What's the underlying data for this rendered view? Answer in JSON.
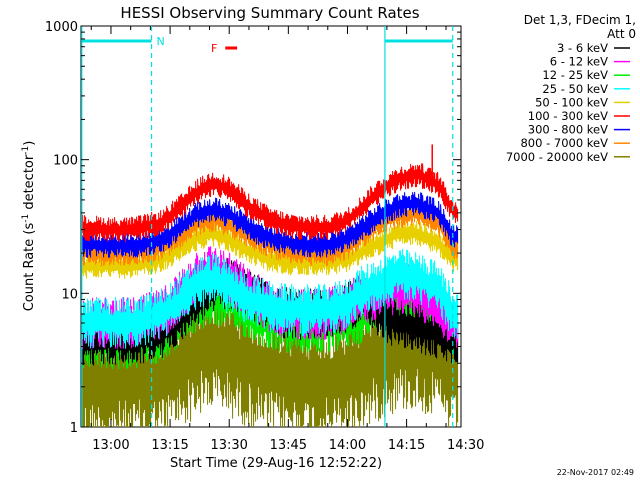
{
  "chart_data": {
    "type": "line",
    "title": "HESSI Observing Summary Count Rates",
    "xlabel": "Start Time (29-Aug-16 12:52:22)",
    "ylabel_main": "Count Rate (s",
    "ylabel_sup1": "-1",
    "ylabel_mid": " detector",
    "ylabel_sup2": "-1",
    "ylabel_end": ")",
    "yscale": "log",
    "ylim": [
      1,
      1000
    ],
    "xlim_minutes": [
      -7.6,
      88.8
    ],
    "x_ticks": [
      {
        "label": "13:00",
        "minutes": 0
      },
      {
        "label": "13:15",
        "minutes": 15
      },
      {
        "label": "13:30",
        "minutes": 30
      },
      {
        "label": "13:45",
        "minutes": 45
      },
      {
        "label": "14:00",
        "minutes": 60
      },
      {
        "label": "14:15",
        "minutes": 75
      },
      {
        "label": "14:30",
        "minutes": 90
      }
    ],
    "y_ticks": [
      {
        "label": "1",
        "value": 1
      },
      {
        "label": "10",
        "value": 10
      },
      {
        "label": "100",
        "value": 100
      },
      {
        "label": "1000",
        "value": 1000
      }
    ],
    "legend_header": [
      "Det 1,3, FDecim 1,",
      "Att 0"
    ],
    "legend_position": "right",
    "series": [
      {
        "name": "3 - 6 keV",
        "color": "#000000",
        "x": [
          -7,
          0,
          6,
          13,
          18,
          22,
          26,
          30,
          35,
          40,
          45,
          50,
          55,
          60,
          63,
          68,
          73,
          78,
          83,
          87
        ],
        "y": [
          4.5,
          4.5,
          4.5,
          5,
          7,
          9,
          11,
          12,
          10,
          8,
          7,
          7,
          7,
          8,
          9,
          7,
          6,
          5.5,
          5,
          4.5
        ]
      },
      {
        "name": "6 - 12 keV",
        "color": "#ff00ff",
        "x": [
          -7,
          0,
          6,
          13,
          18,
          22,
          26,
          30,
          35,
          40,
          45,
          50,
          55,
          60,
          63,
          68,
          73,
          78,
          83,
          87
        ],
        "y": [
          6,
          6,
          6,
          7,
          10,
          14,
          15,
          13,
          10,
          8,
          7,
          7,
          7,
          8,
          9,
          10,
          11,
          10,
          8,
          6
        ]
      },
      {
        "name": "12 - 25 keV",
        "color": "#00ee00",
        "x": [
          -7,
          0,
          6,
          13,
          18,
          22,
          26,
          30,
          35,
          40,
          45,
          50,
          55,
          60,
          63,
          68,
          73,
          78,
          83,
          87
        ],
        "y": [
          4.2,
          4.2,
          4.2,
          4.8,
          6.5,
          8,
          9,
          8.5,
          7,
          6,
          5.5,
          5.5,
          5.5,
          6,
          6.5,
          8,
          9.5,
          9,
          7.5,
          5
        ]
      },
      {
        "name": "25 - 50 keV",
        "color": "#00ffff",
        "x": [
          -7,
          0,
          6,
          13,
          18,
          22,
          26,
          30,
          35,
          40,
          45,
          50,
          55,
          60,
          63,
          68,
          73,
          78,
          83,
          87
        ],
        "y": [
          6,
          6,
          6,
          7,
          9,
          12,
          13,
          11,
          9,
          8,
          7.5,
          7.5,
          7.5,
          8.5,
          10,
          12,
          14,
          13,
          11,
          7
        ]
      },
      {
        "name": "50 - 100 keV",
        "color": "#e8d000",
        "x": [
          -7,
          0,
          6,
          13,
          18,
          22,
          26,
          30,
          35,
          40,
          45,
          50,
          55,
          60,
          63,
          68,
          73,
          78,
          83,
          87
        ],
        "y": [
          16,
          16,
          16,
          18,
          22,
          26,
          28,
          25,
          21,
          18,
          17,
          17,
          17,
          18,
          20,
          24,
          28,
          28,
          24,
          18
        ]
      },
      {
        "name": "100 - 300 keV",
        "color": "#ff0000",
        "x": [
          -7,
          0,
          6,
          13,
          18,
          22,
          26,
          30,
          35,
          40,
          45,
          50,
          55,
          60,
          63,
          68,
          73,
          78,
          83,
          87
        ],
        "y": [
          31,
          30,
          30,
          34,
          45,
          58,
          67,
          60,
          45,
          36,
          32,
          31,
          31,
          35,
          42,
          58,
          72,
          78,
          65,
          40
        ]
      },
      {
        "name": "300 - 800 keV",
        "color": "#0000ff",
        "x": [
          -7,
          0,
          6,
          13,
          18,
          22,
          26,
          30,
          35,
          40,
          45,
          50,
          55,
          60,
          63,
          68,
          73,
          78,
          83,
          87
        ],
        "y": [
          23,
          23,
          23,
          25,
          32,
          39,
          42,
          39,
          31,
          26,
          24,
          23,
          23,
          26,
          30,
          38,
          46,
          47,
          40,
          26
        ]
      },
      {
        "name": "800 - 7000 keV",
        "color": "#ff8800",
        "x": [
          -7,
          0,
          6,
          13,
          18,
          22,
          26,
          30,
          35,
          40,
          45,
          50,
          55,
          60,
          63,
          68,
          73,
          78,
          83,
          87
        ],
        "y": [
          20,
          20,
          20,
          22,
          27,
          33,
          36,
          33,
          27,
          23,
          21,
          20,
          20,
          22,
          26,
          33,
          38,
          40,
          34,
          22
        ]
      },
      {
        "name": "7000 - 20000 keV",
        "color": "#808000",
        "x": [
          -7,
          0,
          6,
          13,
          18,
          22,
          26,
          30,
          35,
          40,
          45,
          50,
          55,
          60,
          63,
          68,
          73,
          78,
          83,
          87
        ],
        "y": [
          2.2,
          2.2,
          2.2,
          2.4,
          3,
          3.6,
          4,
          3.6,
          3,
          2.6,
          2.4,
          2.3,
          2.3,
          2.5,
          2.8,
          3.4,
          4,
          4,
          3.4,
          2.4
        ]
      }
    ],
    "segments": [
      {
        "type": "night",
        "x": [
          -7.4,
          10.3
        ],
        "label": "N"
      },
      {
        "type": "night",
        "x": [
          69.5,
          86.7
        ],
        "label": ""
      }
    ],
    "segment_color": "#00e0e0",
    "flare_flag": {
      "label": "F",
      "x": [
        29,
        32
      ],
      "color": "#ff0000"
    },
    "spike": {
      "minutes": 81.5,
      "value": 130
    },
    "timestamp": "22-Nov-2017 02:49"
  }
}
